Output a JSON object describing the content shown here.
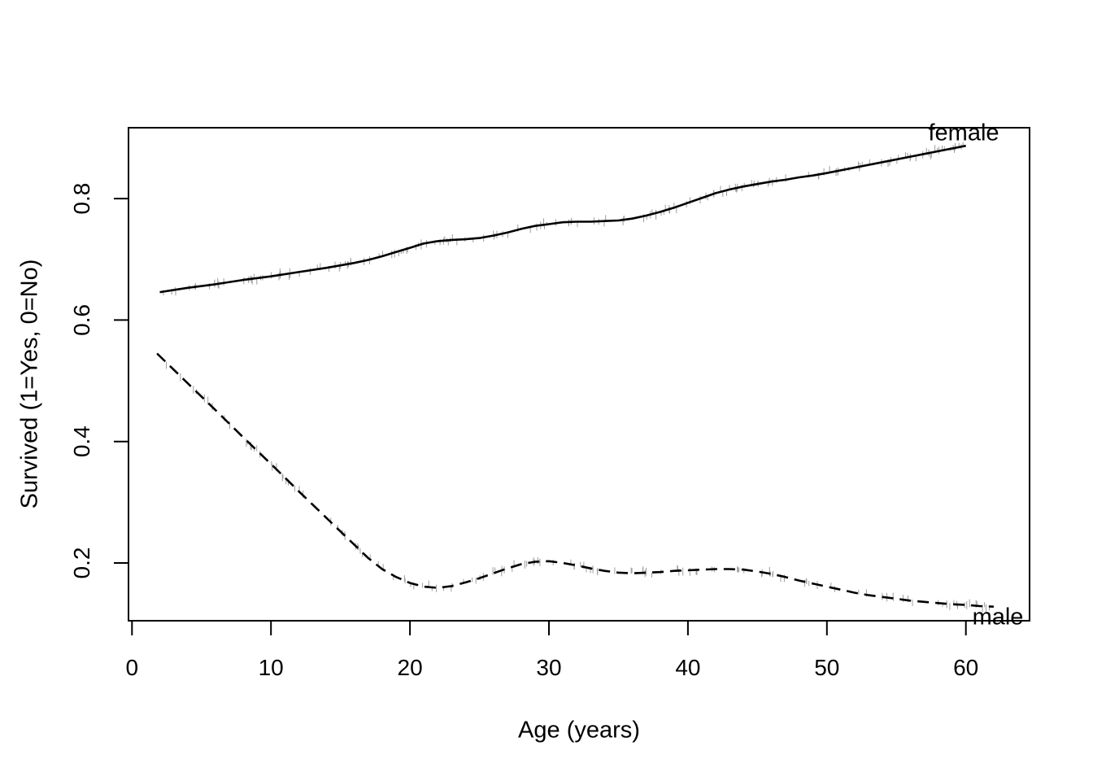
{
  "chart_data": {
    "type": "line",
    "title": "",
    "xlabel": "Age (years)",
    "ylabel": "Survived (1=Yes, 0=No)",
    "x_ticks": [
      0,
      10,
      20,
      30,
      40,
      50,
      60
    ],
    "y_ticks": [
      0.2,
      0.4,
      0.6,
      0.8
    ],
    "xlim": [
      -0.3,
      64.6
    ],
    "ylim": [
      0.105,
      0.918
    ],
    "grid": false,
    "legend_position": "direct line labels at curve ends",
    "colors": {
      "line": "#000000",
      "rug_ticks": "#9c9c9c",
      "background": "#ffffff",
      "box": "#000000"
    },
    "series": [
      {
        "name": "female",
        "line_style": "solid",
        "rug_count": 185,
        "points": [
          [
            2,
            0.646
          ],
          [
            4,
            0.653
          ],
          [
            6,
            0.659
          ],
          [
            8,
            0.666
          ],
          [
            10,
            0.672
          ],
          [
            12,
            0.679
          ],
          [
            14,
            0.686
          ],
          [
            16,
            0.694
          ],
          [
            17,
            0.699
          ],
          [
            18,
            0.705
          ],
          [
            19,
            0.712
          ],
          [
            20,
            0.719
          ],
          [
            21,
            0.726
          ],
          [
            22,
            0.73
          ],
          [
            23,
            0.732
          ],
          [
            24,
            0.733
          ],
          [
            25,
            0.735
          ],
          [
            26,
            0.739
          ],
          [
            27,
            0.744
          ],
          [
            28,
            0.75
          ],
          [
            29,
            0.755
          ],
          [
            30,
            0.758
          ],
          [
            31,
            0.761
          ],
          [
            32,
            0.762
          ],
          [
            33,
            0.762
          ],
          [
            34,
            0.763
          ],
          [
            35,
            0.764
          ],
          [
            36,
            0.767
          ],
          [
            37,
            0.772
          ],
          [
            38,
            0.778
          ],
          [
            39,
            0.785
          ],
          [
            40,
            0.793
          ],
          [
            41,
            0.801
          ],
          [
            42,
            0.809
          ],
          [
            43,
            0.815
          ],
          [
            44,
            0.82
          ],
          [
            45,
            0.824
          ],
          [
            46,
            0.828
          ],
          [
            47,
            0.831
          ],
          [
            48,
            0.835
          ],
          [
            49,
            0.838
          ],
          [
            50,
            0.842
          ],
          [
            52,
            0.851
          ],
          [
            54,
            0.86
          ],
          [
            56,
            0.869
          ],
          [
            58,
            0.878
          ],
          [
            60,
            0.887
          ]
        ]
      },
      {
        "name": "male",
        "line_style": "dashed",
        "rug_count": 150,
        "points": [
          [
            1.8,
            0.545
          ],
          [
            4,
            0.496
          ],
          [
            6,
            0.452
          ],
          [
            8,
            0.407
          ],
          [
            10,
            0.363
          ],
          [
            12,
            0.318
          ],
          [
            14,
            0.274
          ],
          [
            16,
            0.23
          ],
          [
            17,
            0.208
          ],
          [
            18,
            0.19
          ],
          [
            19,
            0.177
          ],
          [
            20,
            0.167
          ],
          [
            21,
            0.161
          ],
          [
            22,
            0.159
          ],
          [
            23,
            0.162
          ],
          [
            24,
            0.168
          ],
          [
            25,
            0.175
          ],
          [
            26,
            0.183
          ],
          [
            27,
            0.191
          ],
          [
            28,
            0.198
          ],
          [
            29,
            0.202
          ],
          [
            30,
            0.203
          ],
          [
            31,
            0.2
          ],
          [
            32,
            0.196
          ],
          [
            33,
            0.191
          ],
          [
            34,
            0.187
          ],
          [
            35,
            0.184
          ],
          [
            36,
            0.183
          ],
          [
            37,
            0.184
          ],
          [
            38,
            0.185
          ],
          [
            39,
            0.187
          ],
          [
            40,
            0.188
          ],
          [
            41,
            0.189
          ],
          [
            42,
            0.19
          ],
          [
            43,
            0.19
          ],
          [
            44,
            0.189
          ],
          [
            45,
            0.186
          ],
          [
            46,
            0.182
          ],
          [
            47,
            0.177
          ],
          [
            48,
            0.171
          ],
          [
            49,
            0.166
          ],
          [
            50,
            0.161
          ],
          [
            51,
            0.156
          ],
          [
            52,
            0.151
          ],
          [
            53,
            0.147
          ],
          [
            54,
            0.144
          ],
          [
            55,
            0.141
          ],
          [
            56,
            0.138
          ],
          [
            57,
            0.136
          ],
          [
            58,
            0.134
          ],
          [
            59,
            0.132
          ],
          [
            60,
            0.131
          ],
          [
            61,
            0.129
          ],
          [
            62,
            0.128
          ]
        ]
      }
    ]
  }
}
